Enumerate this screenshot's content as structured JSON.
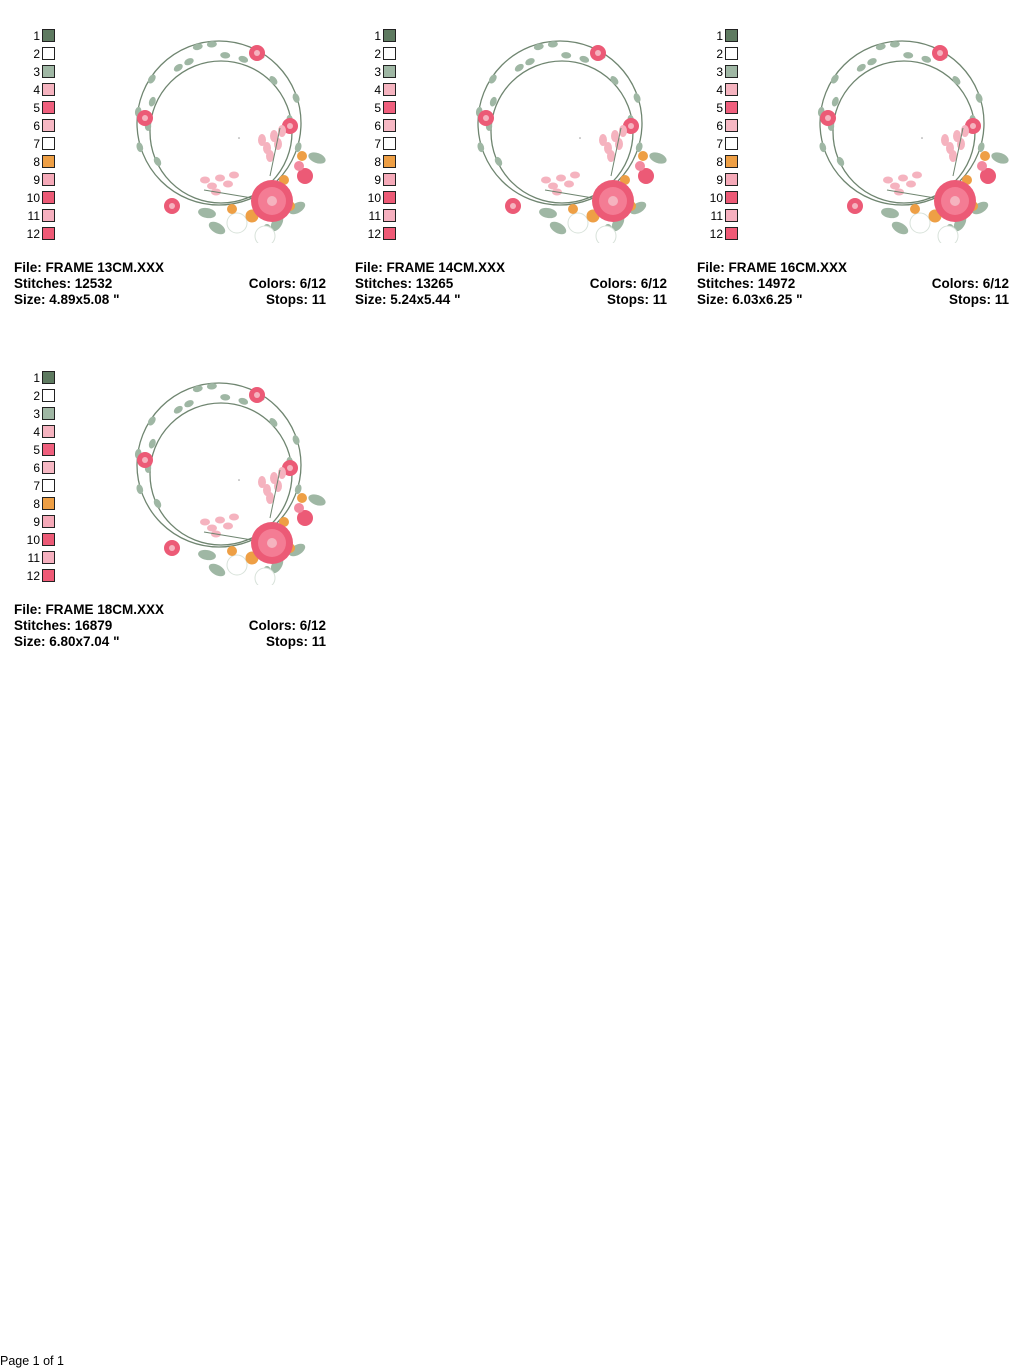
{
  "palette": {
    "labels": [
      "1",
      "2",
      "3",
      "4",
      "5",
      "6",
      "7",
      "8",
      "9",
      "10",
      "11",
      "12"
    ],
    "colors": [
      "#5e7a60",
      "#ffffff",
      "#9fb7a4",
      "#f5b3bf",
      "#ef5f7d",
      "#f7b8c4",
      "#ffffff",
      "#ee9f45",
      "#f5a9b8",
      "#ec5a76",
      "#f6b0bf",
      "#ef5a76"
    ]
  },
  "designs": [
    {
      "file_label": "File: FRAME 13CM.XXX",
      "stitches_label": "Stitches: 12532",
      "colors_label": "Colors: 6/12",
      "size_label": "Size: 4.89x5.08 \"",
      "stops_label": "Stops: 11"
    },
    {
      "file_label": "File: FRAME 14CM.XXX",
      "stitches_label": "Stitches: 13265",
      "colors_label": "Colors: 6/12",
      "size_label": "Size: 5.24x5.44 \"",
      "stops_label": "Stops: 11"
    },
    {
      "file_label": "File: FRAME 16CM.XXX",
      "stitches_label": "Stitches: 14972",
      "colors_label": "Colors: 6/12",
      "size_label": "Size: 6.03x6.25 \"",
      "stops_label": "Stops: 11"
    },
    {
      "file_label": "File: FRAME 18CM.XXX",
      "stitches_label": "Stitches: 16879",
      "colors_label": "Colors: 6/12",
      "size_label": "Size: 6.80x7.04 \"",
      "stops_label": "Stops: 11"
    }
  ],
  "footer": {
    "page_label": "Page 1 of 1"
  },
  "colors": {
    "stem": "#6f8570",
    "leaf": "#9fb7a4",
    "pink_dark": "#ec5a76",
    "pink_light": "#f5b3bf",
    "orange": "#ee9f45"
  }
}
